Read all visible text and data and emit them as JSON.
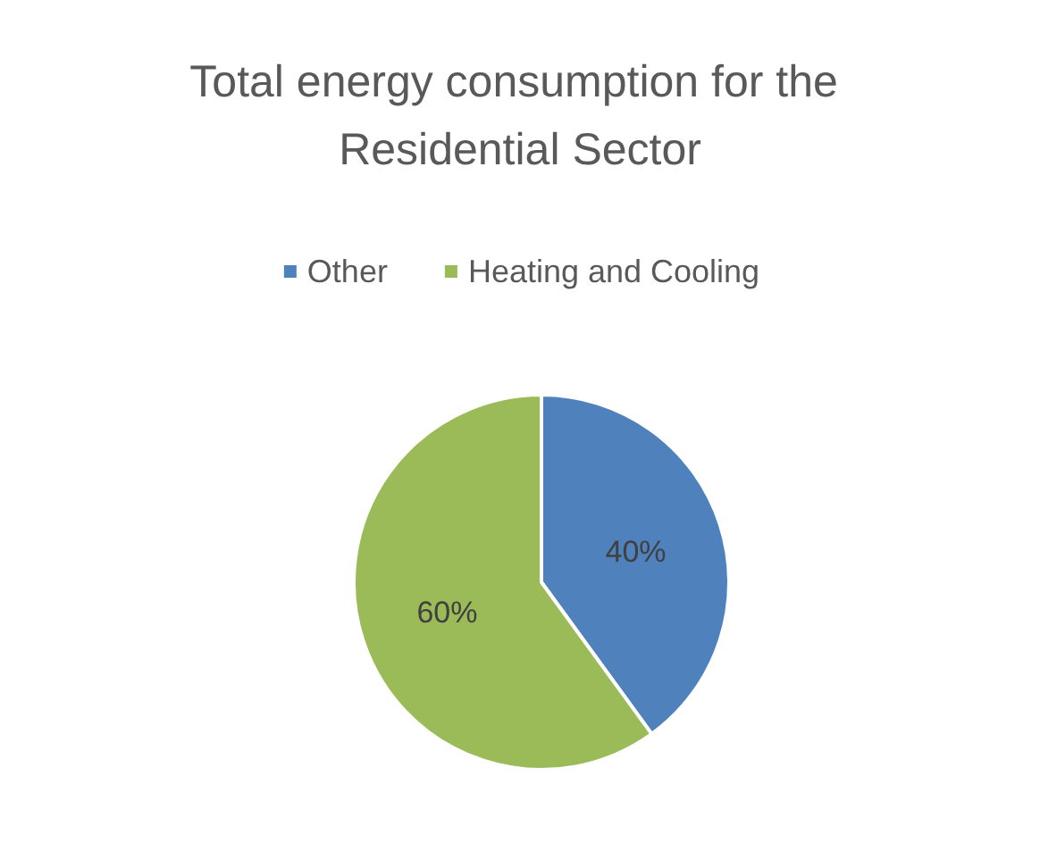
{
  "chart_data": {
    "type": "pie",
    "title": "Total energy consumption for the Residential Sector",
    "categories": [
      "Other",
      "Heating and Cooling"
    ],
    "values": [
      40,
      60
    ],
    "colors": [
      "#4f81bd",
      "#9bbb59"
    ],
    "value_labels": [
      "40%",
      "60%"
    ],
    "legend": "top"
  }
}
